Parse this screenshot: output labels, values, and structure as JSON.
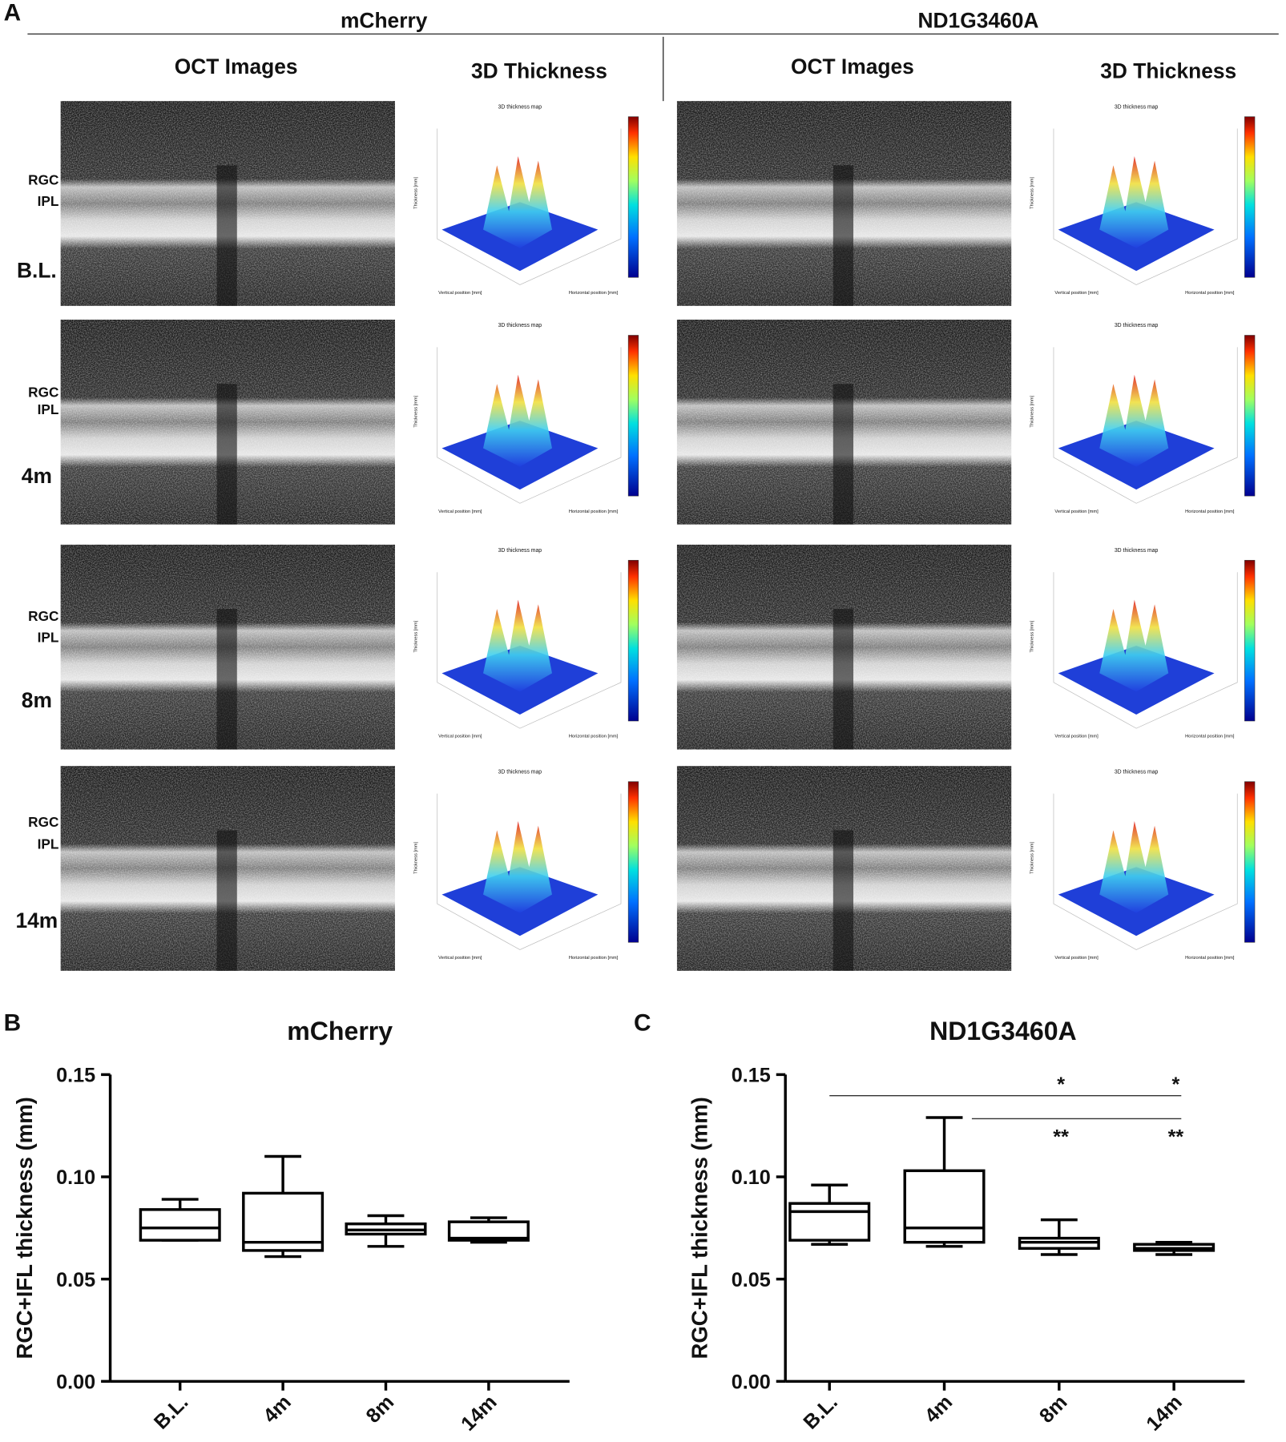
{
  "panel_a": {
    "label": "A",
    "groups": [
      {
        "name": "mCherry",
        "columns": [
          "OCT Images",
          "3D Thickness"
        ]
      },
      {
        "name": "ND1G3460A",
        "columns": [
          "OCT Images",
          "3D Thickness"
        ]
      }
    ],
    "rows": [
      "B.L.",
      "4m",
      "8m",
      "14m"
    ],
    "layers": [
      "RGC",
      "IPL"
    ],
    "map_title": "3D thickness map",
    "map_axes": {
      "z": "Thickness [mm]",
      "vertical": "Vertical position [mm]",
      "horizontal": "Horizontal position [mm]"
    }
  },
  "chart_data": [
    {
      "type": "box",
      "panel_label": "B",
      "title": "mCherry",
      "y_label": "RGC+IFL thickness (mm)",
      "categories": [
        "B.L.",
        "4m",
        "8m",
        "14m"
      ],
      "min": [
        0.069,
        0.061,
        0.066,
        0.068
      ],
      "q1": [
        0.069,
        0.064,
        0.072,
        0.069
      ],
      "median": [
        0.075,
        0.068,
        0.074,
        0.07
      ],
      "q3": [
        0.084,
        0.092,
        0.077,
        0.078
      ],
      "max": [
        0.089,
        0.11,
        0.081,
        0.08
      ],
      "color": "#000000",
      "ylim": [
        0,
        0.15
      ],
      "yticks": [
        {
          "value": 0,
          "label": "0.00"
        },
        0.05,
        {
          "value": 0.1,
          "label": "0.10"
        },
        0.15
      ]
    },
    {
      "type": "box",
      "panel_label": "C",
      "title": "ND1G3460A",
      "y_label": "RGC+IFL thickness (mm)",
      "categories": [
        "B.L.",
        "4m",
        "8m",
        "14m"
      ],
      "min": [
        0.067,
        0.066,
        0.062,
        0.062
      ],
      "q1": [
        0.069,
        0.068,
        0.065,
        0.064
      ],
      "median": [
        0.083,
        0.075,
        0.068,
        0.065
      ],
      "q3": [
        0.087,
        0.103,
        0.07,
        0.067
      ],
      "max": [
        0.096,
        0.129,
        0.079,
        0.068
      ],
      "color": "#000000",
      "ylim": [
        0,
        0.15
      ],
      "yticks": [
        {
          "value": 0,
          "label": "0.00"
        },
        0.05,
        {
          "value": 0.1,
          "label": "0.10"
        },
        0.15
      ],
      "annotations": [
        {
          "text": "*",
          "from": "B.L.",
          "to": "8m"
        },
        {
          "text": "*",
          "from": "B.L.",
          "to": "14m"
        },
        {
          "text": "**",
          "from": "4m",
          "to": "8m"
        },
        {
          "text": "**",
          "from": "4m",
          "to": "14m"
        }
      ]
    }
  ]
}
